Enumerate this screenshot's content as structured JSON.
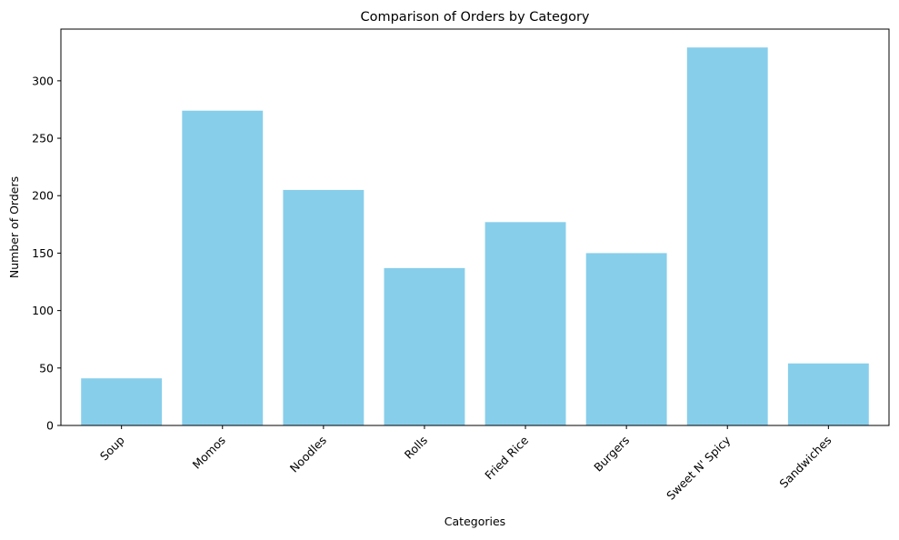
{
  "chart_data": {
    "type": "bar",
    "title": "Comparison of Orders by Category",
    "xlabel": "Categories",
    "ylabel": "Number of Orders",
    "categories": [
      "Soup",
      "Momos",
      "Noodles",
      "Rolls",
      "Fried Rice",
      "Burgers",
      "Sweet N' Spicy",
      "Sandwiches"
    ],
    "values": [
      41,
      274,
      205,
      137,
      177,
      150,
      329,
      54
    ],
    "ylim": [
      0,
      345
    ],
    "yticks": [
      0,
      50,
      100,
      150,
      200,
      250,
      300
    ],
    "bar_color": "#87ceeb",
    "grid": false,
    "legend": false,
    "xtick_rotation_deg": 45
  }
}
